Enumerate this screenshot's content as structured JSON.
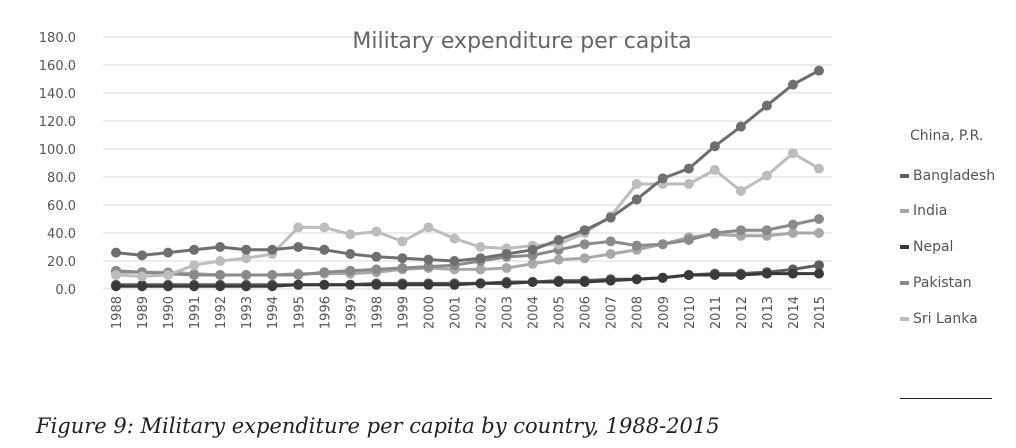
{
  "chart_data": {
    "type": "line",
    "title": "Military expenditure per capita",
    "xlabel": "",
    "ylabel": "",
    "ylim": [
      0,
      180
    ],
    "yticks": [
      "0.0",
      "20.0",
      "40.0",
      "60.0",
      "80.0",
      "100.0",
      "120.0",
      "140.0",
      "160.0",
      "180.0"
    ],
    "x": [
      "1988",
      "1989",
      "1990",
      "1991",
      "1992",
      "1993",
      "1994",
      "1995",
      "1996",
      "1997",
      "1998",
      "1999",
      "2000",
      "2001",
      "2002",
      "2003",
      "2004",
      "2005",
      "2006",
      "2007",
      "2008",
      "2009",
      "2010",
      "2011",
      "2012",
      "2013",
      "2014",
      "2015"
    ],
    "grid": true,
    "legend_position": "right",
    "legend_title": "China, P.R.",
    "series": [
      {
        "name": "Bangladesh",
        "color": "#5e5e5e",
        "values": [
          3,
          3,
          3,
          3,
          3,
          3,
          3,
          3,
          3,
          3,
          4,
          4,
          4,
          4,
          4,
          5,
          5,
          6,
          6,
          7,
          7,
          8,
          10,
          11,
          11,
          12,
          14,
          17
        ]
      },
      {
        "name": "India",
        "color": "#a8a8a8",
        "values": [
          12,
          12,
          12,
          11,
          10,
          10,
          10,
          11,
          11,
          11,
          12,
          14,
          15,
          14,
          14,
          15,
          18,
          21,
          22,
          25,
          28,
          32,
          37,
          39,
          38,
          38,
          40,
          40
        ]
      },
      {
        "name": "Nepal",
        "color": "#3a3a3a",
        "values": [
          2,
          2,
          2,
          2,
          2,
          2,
          2,
          3,
          3,
          3,
          3,
          3,
          3,
          3,
          4,
          4,
          5,
          5,
          5,
          6,
          7,
          8,
          10,
          10,
          10,
          11,
          11,
          11
        ]
      },
      {
        "name": "Pakistan",
        "color": "#8a8a8a",
        "values": [
          13,
          12,
          11,
          10,
          10,
          10,
          10,
          10,
          12,
          13,
          14,
          15,
          16,
          17,
          20,
          23,
          24,
          28,
          32,
          34,
          31,
          32,
          35,
          40,
          42,
          42,
          46,
          50
        ]
      },
      {
        "name": "Sri Lanka",
        "color": "#bdbdbd",
        "values": [
          10,
          9,
          10,
          17,
          20,
          22,
          25,
          44,
          44,
          39,
          41,
          34,
          44,
          36,
          30,
          29,
          31,
          32,
          40,
          52,
          75,
          75,
          75,
          85,
          70,
          81,
          97,
          86
        ]
      },
      {
        "name": "",
        "color": "#6f6f6f",
        "values": [
          26,
          24,
          26,
          28,
          30,
          28,
          28,
          30,
          28,
          25,
          23,
          22,
          21,
          20,
          22,
          25,
          28,
          35,
          42,
          51,
          64,
          79,
          86,
          102,
          116,
          131,
          146,
          156
        ]
      }
    ]
  },
  "caption": "Figure 9: Military expenditure per capita by country, 1988-2015"
}
